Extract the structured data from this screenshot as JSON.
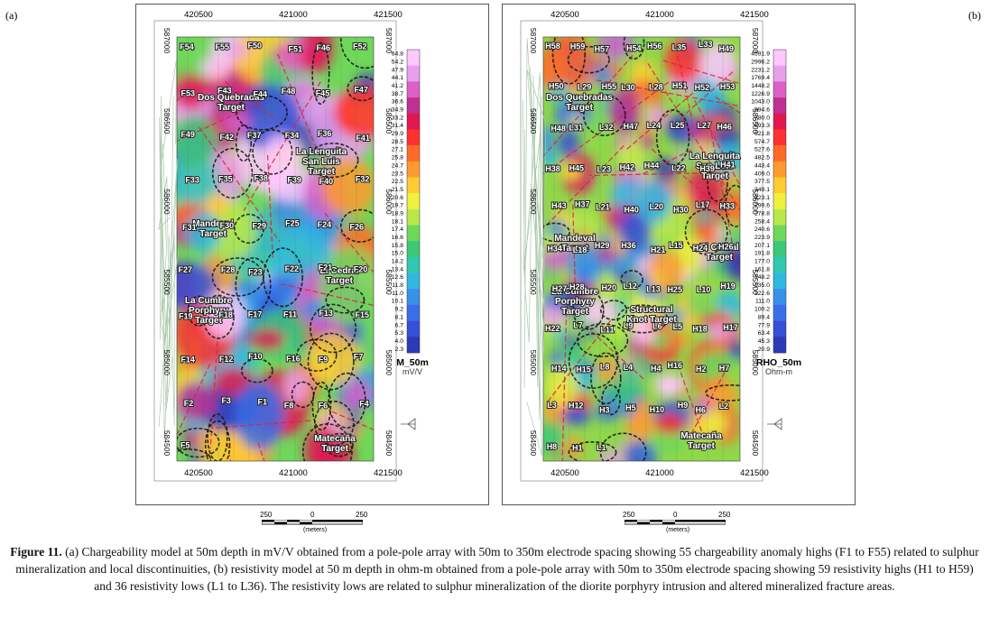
{
  "panels": [
    {
      "tag": "(a)",
      "top_ticks": [
        "420500",
        "421000",
        "421500"
      ],
      "bottom_ticks": [
        "420500",
        "421000",
        "421500"
      ],
      "left_ticks": [
        "587000",
        "586500",
        "586000",
        "585500",
        "585000",
        "584500"
      ],
      "right_ticks": [
        "587000",
        "586500",
        "586000",
        "585500",
        "585000",
        "584500"
      ],
      "colorbar": {
        "title": "M_50m",
        "unit": "mV/V",
        "values": [
          "64.8",
          "54.2",
          "47.9",
          "44.1",
          "41.2",
          "38.7",
          "36.6",
          "34.9",
          "33.2",
          "31.4",
          "29.9",
          "28.5",
          "27.1",
          "25.8",
          "24.7",
          "23.5",
          "22.5",
          "21.5",
          "20.6",
          "19.7",
          "18.9",
          "18.1",
          "17.4",
          "16.6",
          "15.8",
          "15.0",
          "14.2",
          "13.4",
          "12.6",
          "11.8",
          "11.0",
          "10.1",
          "9.2",
          "8.1",
          "6.7",
          "5.3",
          "4.0",
          "2.3"
        ]
      },
      "targets": [
        "Dos Quebradas Target",
        "La Lenguita San Luis Target",
        "Mandeval Target",
        "El Cedral Target",
        "La Cumbre Porphyry Target",
        "Matecaña Target"
      ],
      "anomalies": [
        "F54",
        "F55",
        "F50",
        "F51",
        "F46",
        "F52",
        "F53",
        "F43",
        "F44",
        "F48",
        "F45",
        "F47",
        "F49",
        "F42",
        "F37",
        "F34",
        "F36",
        "F41",
        "F33",
        "F35",
        "F38",
        "F39",
        "F40",
        "F32",
        "F31",
        "F30",
        "F29",
        "F25",
        "F24",
        "F26",
        "F27",
        "F28",
        "F23",
        "F22",
        "F21",
        "F20",
        "F19",
        "F18",
        "F17",
        "F11",
        "F13",
        "F15",
        "F14",
        "F12",
        "F10",
        "F16",
        "F9",
        "F7",
        "F2",
        "F3",
        "F1",
        "F8",
        "F6",
        "F4",
        "F5"
      ]
    },
    {
      "tag": "(b)",
      "top_ticks": [
        "420500",
        "421000",
        "421500"
      ],
      "bottom_ticks": [
        "420500",
        "421000",
        "421500"
      ],
      "left_ticks": [
        "587000",
        "586500",
        "586000",
        "585500",
        "585000",
        "584500"
      ],
      "right_ticks": [
        "587000",
        "586500",
        "586000",
        "585500",
        "585000",
        "584500"
      ],
      "colorbar": {
        "title": "RHO_50m",
        "unit": "Ohm-m",
        "values": [
          "4591.9",
          "2996.2",
          "2231.2",
          "1769.4",
          "1448.2",
          "1226.9",
          "1043.0",
          "894.6",
          "780.0",
          "693.3",
          "621.8",
          "574.7",
          "527.6",
          "482.5",
          "443.4",
          "409.0",
          "377.5",
          "349.1",
          "323.1",
          "299.6",
          "278.8",
          "258.4",
          "240.6",
          "223.9",
          "207.1",
          "191.8",
          "177.0",
          "161.8",
          "148.2",
          "135.0",
          "122.6",
          "111.0",
          "100.2",
          "89.4",
          "77.9",
          "63.4",
          "45.3",
          "20.9"
        ]
      },
      "targets": [
        "Dos Quebradas Target",
        "La Lenguita San Luis Target",
        "Mandeval Target",
        "El Cedral Target",
        "La Cumbre Porphyry Target",
        "Structural Knot Target",
        "Matecaña Target"
      ],
      "anomalies": [
        "H58",
        "H59",
        "H57",
        "H54",
        "H56",
        "L35",
        "L33",
        "H49",
        "H50",
        "L29",
        "H55",
        "L30",
        "L28",
        "H51",
        "H52",
        "H53",
        "H48",
        "L31",
        "L32",
        "H47",
        "L24",
        "L25",
        "L27",
        "H46",
        "H38",
        "H45",
        "L23",
        "H42",
        "H44",
        "L22",
        "H39",
        "H41",
        "H43",
        "H37",
        "L21",
        "H40",
        "L20",
        "H30",
        "L17",
        "H33",
        "H34",
        "L18",
        "H29",
        "H36",
        "H21",
        "L15",
        "H24",
        "H26",
        "H27",
        "H28",
        "H20",
        "L12",
        "L13",
        "H25",
        "L10",
        "H19",
        "H22",
        "L7",
        "L11",
        "L9",
        "L6",
        "L5",
        "H18",
        "H17",
        "H14",
        "H15",
        "L8",
        "L4",
        "H4",
        "H16",
        "H2",
        "H7",
        "L3",
        "H12",
        "H3",
        "H5",
        "H10",
        "H9",
        "H6",
        "L2",
        "H8",
        "H1",
        "L1"
      ]
    }
  ],
  "scalebar": {
    "labels": [
      "250",
      "0",
      "250"
    ],
    "unit": "(meters)"
  },
  "caption": {
    "label": "Figure 11.",
    "text": " (a) Chargeability model at 50m depth in mV/V obtained from a pole-pole array with 50m to 350m electrode spacing showing 55 chargeability anomaly highs (F1 to F55) related to sulphur mineralization and local discontinuities, (b) resistivity model at 50 m depth in ohm-m obtained from a pole-pole array with 50m to 350m electrode spacing showing 59 resistivity highs (H1 to H59) and 36 resistivity lows (L1 to L36). The resistivity lows are related to sulphur mineralization of the diorite porphyry intrusion and altered mineralized fracture areas."
  }
}
